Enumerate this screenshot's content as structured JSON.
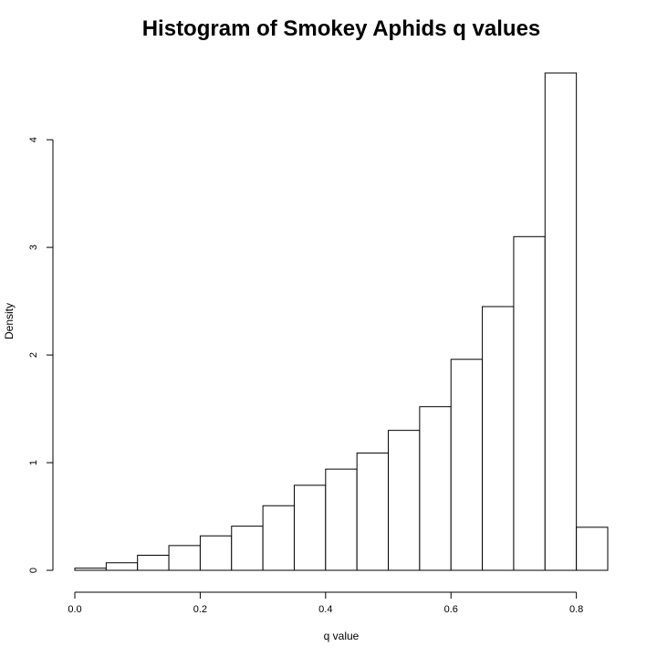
{
  "chart_data": {
    "type": "bar",
    "title": "Histogram of Smokey Aphids q values",
    "xlabel": "q value",
    "ylabel": "Density",
    "bin_width": 0.05,
    "bins_start": [
      0.0,
      0.05,
      0.1,
      0.15,
      0.2,
      0.25,
      0.3,
      0.35,
      0.4,
      0.45,
      0.5,
      0.55,
      0.6,
      0.65,
      0.7,
      0.75,
      0.8
    ],
    "values": [
      0.02,
      0.07,
      0.14,
      0.23,
      0.32,
      0.41,
      0.6,
      0.79,
      0.94,
      1.09,
      1.3,
      1.52,
      1.96,
      2.45,
      3.1,
      4.62,
      0.4
    ],
    "xlim": [
      0.0,
      0.85
    ],
    "ylim": [
      0,
      4.62
    ],
    "x_ticks": [
      0.0,
      0.2,
      0.4,
      0.6,
      0.8
    ],
    "x_tick_labels": [
      "0.0",
      "0.2",
      "0.4",
      "0.6",
      "0.8"
    ],
    "y_ticks": [
      0,
      1,
      2,
      3,
      4
    ],
    "y_tick_labels": [
      "0",
      "1",
      "2",
      "3",
      "4"
    ],
    "grid": false,
    "legend": "none",
    "colors": {
      "bar_fill": "#ffffff",
      "bar_stroke": "#000000"
    }
  }
}
